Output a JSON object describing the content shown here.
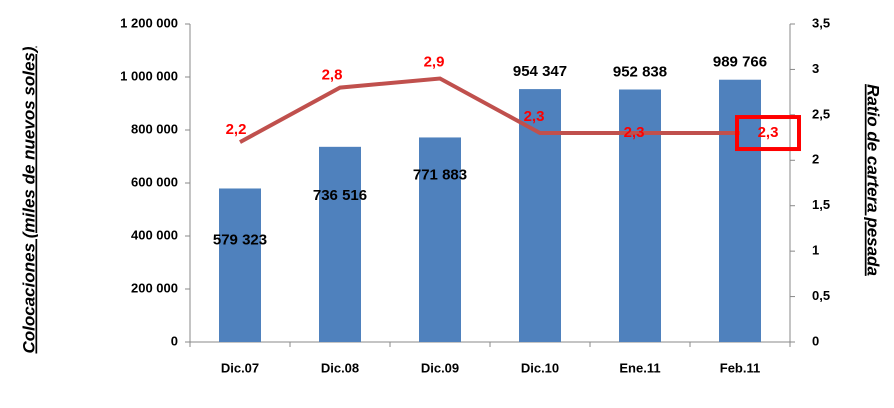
{
  "chart_data": {
    "type": "bar",
    "y_label": "Colocaciones (miles de nuevos soles)",
    "y2_label": "Ratio de cartera pesada",
    "categories": [
      "Dic.07",
      "Dic.08",
      "Dic.09",
      "Dic.10",
      "Ene.11",
      "Feb.11"
    ],
    "series": [
      {
        "name": "Colocaciones",
        "type": "bar",
        "color": "#4f81bd",
        "values": [
          579323,
          736516,
          771883,
          954347,
          952838,
          989766
        ],
        "value_labels": [
          "579 323",
          "736 516",
          "771 883",
          "954 347",
          "952 838",
          "989 766"
        ]
      },
      {
        "name": "Ratio de cartera pesada",
        "type": "line",
        "axis": "y2",
        "color": "#c0504d",
        "values": [
          2.2,
          2.8,
          2.9,
          2.3,
          2.3,
          2.3
        ],
        "value_labels": [
          "2,2",
          "2,8",
          "2,9",
          "2,3",
          "2,3",
          "2,3"
        ]
      }
    ],
    "ylim": [
      0,
      1200000
    ],
    "yticks": [
      0,
      {
        "value": 200000,
        "label": "200 000"
      },
      {
        "value": 400000,
        "label": "400 000"
      },
      {
        "value": 600000,
        "label": "600 000"
      },
      {
        "value": 800000,
        "label": "800 000"
      },
      {
        "value": 1000000,
        "label": "1 000 000"
      },
      {
        "value": 1200000,
        "label": "1 200 000"
      }
    ],
    "y2lim": [
      0,
      3.5
    ],
    "y2ticks": [
      0,
      {
        "value": 0.5,
        "label": "0,5"
      },
      1,
      {
        "value": 1.5,
        "label": "1,5"
      },
      2,
      {
        "value": 2.5,
        "label": "2,5"
      },
      3,
      {
        "value": 3.5,
        "label": "3,5"
      }
    ],
    "grid": false
  }
}
